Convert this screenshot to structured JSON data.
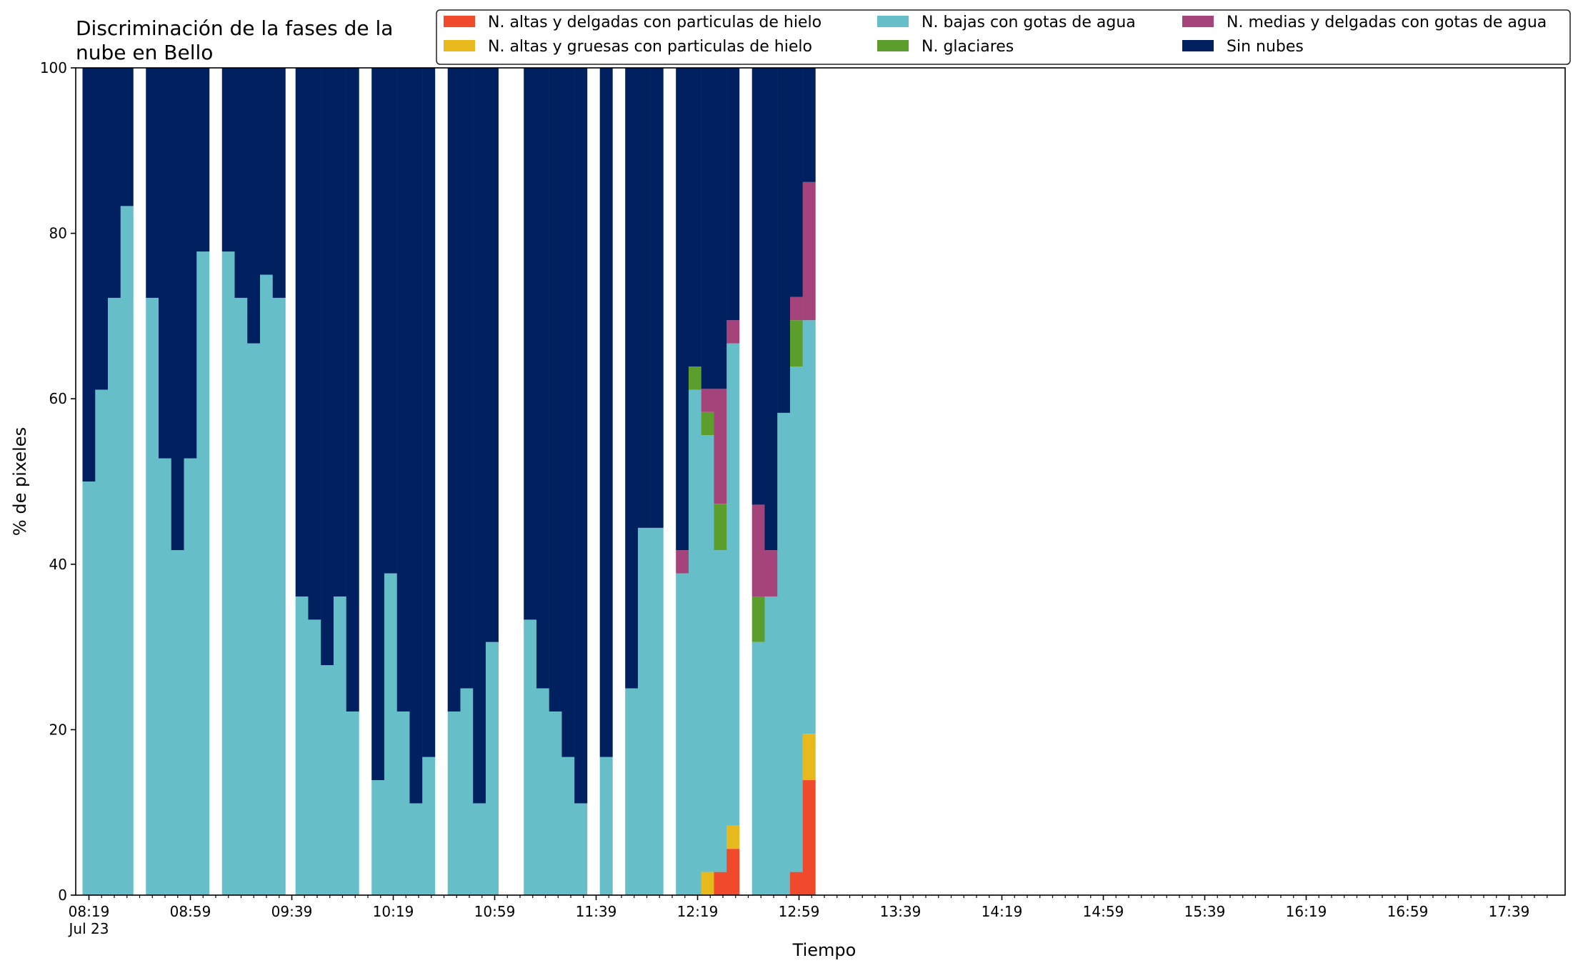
{
  "chart_data": {
    "type": "bar",
    "stacked": true,
    "title_lines": [
      "Discriminación de la fases de la",
      "nube en Bello"
    ],
    "xlabel": "Tiempo",
    "ylabel": "% de pixeles",
    "ylim": [
      0,
      100
    ],
    "yticks": [
      0,
      20,
      40,
      60,
      80,
      100
    ],
    "x_start": "08:19",
    "x_step_minutes": 5,
    "x_count": 58,
    "xtick_labels": [
      {
        "index": 0,
        "label": "08:19",
        "sub": "Jul 23"
      },
      {
        "index": 8,
        "label": "08:59"
      },
      {
        "index": 16,
        "label": "09:39"
      },
      {
        "index": 24,
        "label": "10:19"
      },
      {
        "index": 32,
        "label": "10:59"
      },
      {
        "index": 40,
        "label": "11:39"
      },
      {
        "index": 48,
        "label": "12:19"
      },
      {
        "index": 56,
        "label": "12:59"
      },
      {
        "index": 64,
        "label": "13:39"
      },
      {
        "index": 72,
        "label": "14:19"
      },
      {
        "index": 80,
        "label": "14:59"
      },
      {
        "index": 88,
        "label": "15:39"
      },
      {
        "index": 96,
        "label": "16:19"
      },
      {
        "index": 104,
        "label": "16:59"
      },
      {
        "index": 112,
        "label": "17:39"
      }
    ],
    "legend_location": "top-right",
    "legend_columns": 3,
    "grid": false,
    "series": [
      {
        "name": "N. altas y delgadas con particulas de hielo",
        "color": "#ee4a2b",
        "legend_order": 0
      },
      {
        "name": "N. altas y gruesas con particulas de hielo",
        "color": "#e8b91c",
        "legend_order": 1
      },
      {
        "name": "N. bajas con gotas de agua",
        "color": "#66bec9",
        "legend_order": 2
      },
      {
        "name": "N. glaciares",
        "color": "#5c9e2c",
        "legend_order": 3
      },
      {
        "name": "N. medias y delgadas con gotas de agua",
        "color": "#a4447a",
        "legend_order": 4
      },
      {
        "name": "Sin nubes",
        "color": "#00205f",
        "legend_order": 5
      }
    ],
    "stack_order": [
      "N. altas y delgadas con particulas de hielo",
      "N. altas y gruesas con particulas de hielo",
      "N. bajas con gotas de agua",
      "N. glaciares",
      "N. medias y delgadas con gotas de agua",
      "Sin nubes"
    ],
    "bars": [
      {
        "x": "08:19",
        "values": [
          0,
          0,
          50,
          0,
          0,
          50
        ]
      },
      {
        "x": "08:24",
        "values": [
          0,
          0,
          61.1,
          0,
          0,
          38.9
        ]
      },
      {
        "x": "08:29",
        "values": [
          0,
          0,
          72.2,
          0,
          0,
          27.8
        ]
      },
      {
        "x": "08:34",
        "values": [
          0,
          0,
          83.3,
          0,
          0,
          16.7
        ]
      },
      {
        "x": "08:44",
        "values": [
          0,
          0,
          72.2,
          0,
          0,
          27.8
        ]
      },
      {
        "x": "08:49",
        "values": [
          0,
          0,
          52.8,
          0,
          0,
          47.2
        ]
      },
      {
        "x": "08:54",
        "values": [
          0,
          0,
          41.7,
          0,
          0,
          58.3
        ]
      },
      {
        "x": "08:59",
        "values": [
          0,
          0,
          52.8,
          0,
          0,
          47.2
        ]
      },
      {
        "x": "09:04",
        "values": [
          0,
          0,
          77.8,
          0,
          0,
          22.2
        ]
      },
      {
        "x": "09:14",
        "values": [
          0,
          0,
          77.8,
          0,
          0,
          22.2
        ]
      },
      {
        "x": "09:19",
        "values": [
          0,
          0,
          72.2,
          0,
          0,
          27.8
        ]
      },
      {
        "x": "09:24",
        "values": [
          0,
          0,
          66.7,
          0,
          0,
          33.3
        ]
      },
      {
        "x": "09:29",
        "values": [
          0,
          0,
          75,
          0,
          0,
          25
        ]
      },
      {
        "x": "09:34",
        "values": [
          0,
          0,
          72.2,
          0,
          0,
          27.8
        ]
      },
      {
        "x": "09:43",
        "values": [
          0,
          0,
          36.1,
          0,
          0,
          63.9
        ]
      },
      {
        "x": "09:48",
        "values": [
          0,
          0,
          33.3,
          0,
          0,
          66.7
        ]
      },
      {
        "x": "09:53",
        "values": [
          0,
          0,
          27.8,
          0,
          0,
          72.2
        ]
      },
      {
        "x": "09:58",
        "values": [
          0,
          0,
          36.1,
          0,
          0,
          63.9
        ]
      },
      {
        "x": "10:03",
        "values": [
          0,
          0,
          22.2,
          0,
          0,
          77.8
        ]
      },
      {
        "x": "10:13",
        "values": [
          0,
          0,
          13.9,
          0,
          0,
          86.1
        ]
      },
      {
        "x": "10:18",
        "values": [
          0,
          0,
          38.9,
          0,
          0,
          61.1
        ]
      },
      {
        "x": "10:23",
        "values": [
          0,
          0,
          22.2,
          0,
          0,
          77.8
        ]
      },
      {
        "x": "10:28",
        "values": [
          0,
          0,
          11.1,
          0,
          0,
          88.9
        ]
      },
      {
        "x": "10:33",
        "values": [
          0,
          0,
          16.7,
          0,
          0,
          83.3
        ]
      },
      {
        "x": "10:43",
        "values": [
          0,
          0,
          22.2,
          0,
          0,
          77.8
        ]
      },
      {
        "x": "10:48",
        "values": [
          0,
          0,
          25,
          0,
          0,
          75
        ]
      },
      {
        "x": "10:53",
        "values": [
          0,
          0,
          11.1,
          0,
          0,
          88.9
        ]
      },
      {
        "x": "10:58",
        "values": [
          0,
          0,
          30.6,
          0,
          0,
          69.4
        ]
      },
      {
        "x": "11:13",
        "values": [
          0,
          0,
          33.3,
          0,
          0,
          66.7
        ]
      },
      {
        "x": "11:18",
        "values": [
          0,
          0,
          25,
          0,
          0,
          75
        ]
      },
      {
        "x": "11:23",
        "values": [
          0,
          0,
          22.2,
          0,
          0,
          77.8
        ]
      },
      {
        "x": "11:28",
        "values": [
          0,
          0,
          16.7,
          0,
          0,
          83.3
        ]
      },
      {
        "x": "11:33",
        "values": [
          0,
          0,
          11.1,
          0,
          0,
          88.9
        ]
      },
      {
        "x": "11:43",
        "values": [
          0,
          0,
          16.7,
          0,
          0,
          83.3
        ]
      },
      {
        "x": "11:53",
        "values": [
          0,
          0,
          25,
          0,
          0,
          75
        ]
      },
      {
        "x": "11:58",
        "values": [
          0,
          0,
          44.4,
          0,
          0,
          55.6
        ]
      },
      {
        "x": "12:03",
        "values": [
          0,
          0,
          44.4,
          0,
          0,
          55.6
        ]
      },
      {
        "x": "12:13",
        "values": [
          0,
          0,
          38.9,
          0,
          2.8,
          58.3
        ]
      },
      {
        "x": "12:18",
        "values": [
          0,
          0,
          61.1,
          2.8,
          0,
          36.1
        ]
      },
      {
        "x": "12:23",
        "values": [
          0,
          2.8,
          52.8,
          2.8,
          2.8,
          38.8
        ]
      },
      {
        "x": "12:28",
        "values": [
          2.8,
          0,
          38.9,
          5.6,
          13.9,
          38.8
        ]
      },
      {
        "x": "12:33",
        "values": [
          5.6,
          2.8,
          58.3,
          0,
          2.8,
          30.5
        ]
      },
      {
        "x": "12:43",
        "values": [
          0,
          0,
          30.6,
          5.5,
          11.1,
          52.8
        ]
      },
      {
        "x": "12:48",
        "values": [
          0,
          0,
          36.1,
          0,
          5.6,
          58.3
        ]
      },
      {
        "x": "12:53",
        "values": [
          0,
          0,
          58.3,
          0,
          0,
          41.7
        ]
      },
      {
        "x": "12:58",
        "values": [
          2.8,
          0,
          61.1,
          5.6,
          2.8,
          27.7
        ]
      },
      {
        "x": "13:03",
        "values": [
          13.9,
          5.6,
          50,
          0,
          16.7,
          13.8
        ]
      }
    ]
  }
}
